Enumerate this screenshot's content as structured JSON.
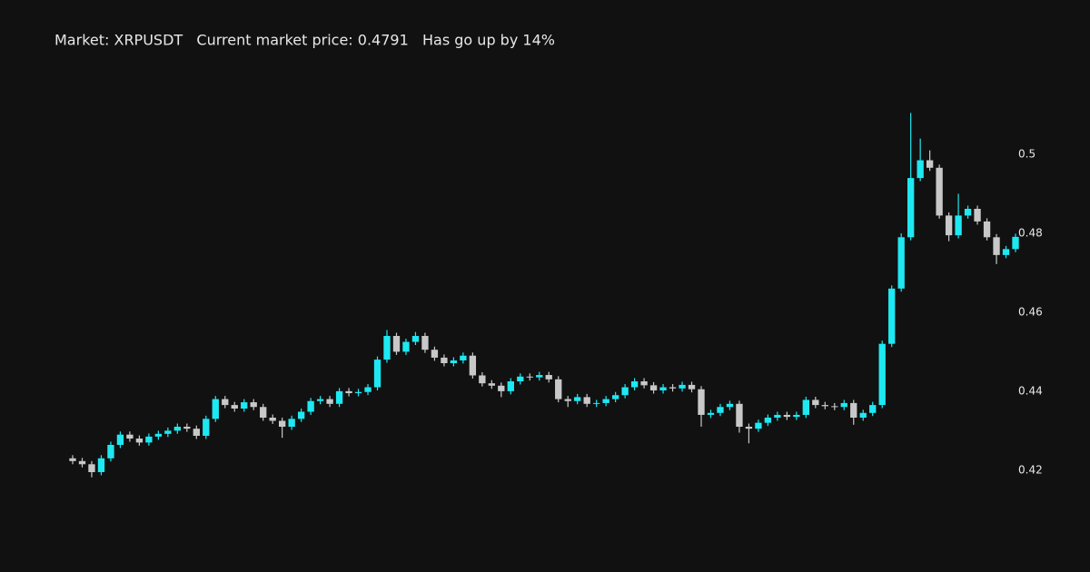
{
  "chart_data": {
    "type": "candlestick",
    "title": "Market: XRPUSDT   Current market price: 0.4791   Has go up by 14%",
    "open": [
      0.423,
      0.4223,
      0.4215,
      0.4195,
      0.423,
      0.4264,
      0.429,
      0.428,
      0.427,
      0.4285,
      0.4292,
      0.43,
      0.431,
      0.4305,
      0.4287,
      0.433,
      0.438,
      0.4365,
      0.4356,
      0.4372,
      0.436,
      0.4333,
      0.4325,
      0.431,
      0.433,
      0.4348,
      0.4375,
      0.438,
      0.4368,
      0.44,
      0.4395,
      0.4398,
      0.441,
      0.448,
      0.454,
      0.45,
      0.4525,
      0.454,
      0.4505,
      0.4485,
      0.4471,
      0.4478,
      0.449,
      0.444,
      0.442,
      0.4414,
      0.44,
      0.4425,
      0.4437,
      0.4435,
      0.4441,
      0.443,
      0.438,
      0.4375,
      0.4385,
      0.4368,
      0.437,
      0.438,
      0.439,
      0.441,
      0.4425,
      0.4415,
      0.4402,
      0.441,
      0.4407,
      0.4416,
      0.4405,
      0.434,
      0.4345,
      0.436,
      0.4368,
      0.431,
      0.4305,
      0.432,
      0.4333,
      0.434,
      0.4335,
      0.434,
      0.4378,
      0.4365,
      0.4362,
      0.436,
      0.437,
      0.4333,
      0.4345,
      0.4365,
      0.452,
      0.466,
      0.479,
      0.494,
      0.4985,
      0.4966,
      0.4845,
      0.4795,
      0.4845,
      0.4862,
      0.483,
      0.479,
      0.4745,
      0.476
    ],
    "high": [
      0.4238,
      0.4231,
      0.4223,
      0.4238,
      0.4272,
      0.4298,
      0.4298,
      0.4288,
      0.4293,
      0.43,
      0.4308,
      0.4318,
      0.4318,
      0.4313,
      0.4338,
      0.4388,
      0.4388,
      0.4373,
      0.438,
      0.438,
      0.4368,
      0.4341,
      0.4333,
      0.4338,
      0.4356,
      0.4383,
      0.4388,
      0.4388,
      0.4408,
      0.4408,
      0.4406,
      0.4418,
      0.4488,
      0.4555,
      0.4548,
      0.4533,
      0.455,
      0.4548,
      0.4513,
      0.4493,
      0.4486,
      0.4498,
      0.4498,
      0.4448,
      0.4428,
      0.4422,
      0.4433,
      0.4445,
      0.4445,
      0.4449,
      0.4449,
      0.4438,
      0.4388,
      0.4393,
      0.4393,
      0.4378,
      0.4388,
      0.4398,
      0.4418,
      0.4433,
      0.4433,
      0.4423,
      0.4418,
      0.4418,
      0.4424,
      0.4424,
      0.4413,
      0.4353,
      0.4368,
      0.4376,
      0.4376,
      0.4318,
      0.4328,
      0.4341,
      0.4348,
      0.4348,
      0.4348,
      0.4386,
      0.4386,
      0.4373,
      0.437,
      0.4378,
      0.4378,
      0.4353,
      0.4373,
      0.4528,
      0.4668,
      0.48,
      0.5105,
      0.504,
      0.501,
      0.4974,
      0.4853,
      0.49,
      0.487,
      0.487,
      0.4838,
      0.4798,
      0.4768,
      0.4799
    ],
    "low": [
      0.4215,
      0.4207,
      0.4182,
      0.4187,
      0.4222,
      0.4256,
      0.4272,
      0.4262,
      0.4262,
      0.4277,
      0.4284,
      0.4292,
      0.4297,
      0.4279,
      0.4279,
      0.4322,
      0.4357,
      0.4348,
      0.4348,
      0.4352,
      0.4325,
      0.4317,
      0.4282,
      0.4302,
      0.4322,
      0.434,
      0.4367,
      0.436,
      0.436,
      0.4387,
      0.4387,
      0.439,
      0.4402,
      0.4472,
      0.4492,
      0.4492,
      0.4517,
      0.4497,
      0.4477,
      0.4463,
      0.4463,
      0.447,
      0.4432,
      0.4412,
      0.4406,
      0.4385,
      0.4392,
      0.4417,
      0.4427,
      0.4427,
      0.4422,
      0.4372,
      0.436,
      0.4367,
      0.436,
      0.436,
      0.4362,
      0.4372,
      0.4382,
      0.4402,
      0.4407,
      0.4394,
      0.4394,
      0.4399,
      0.4399,
      0.4397,
      0.431,
      0.4332,
      0.4337,
      0.4352,
      0.4295,
      0.4268,
      0.4297,
      0.4312,
      0.4325,
      0.4327,
      0.4327,
      0.4332,
      0.4357,
      0.4354,
      0.4352,
      0.4352,
      0.4315,
      0.4325,
      0.4337,
      0.4357,
      0.4512,
      0.4652,
      0.4782,
      0.4932,
      0.4958,
      0.4837,
      0.478,
      0.4787,
      0.4837,
      0.4822,
      0.4782,
      0.4722,
      0.4737,
      0.4752
    ],
    "close": [
      0.4223,
      0.4215,
      0.4195,
      0.423,
      0.4264,
      0.429,
      0.428,
      0.427,
      0.4285,
      0.4292,
      0.43,
      0.431,
      0.4305,
      0.4287,
      0.433,
      0.438,
      0.4365,
      0.4356,
      0.4372,
      0.436,
      0.4333,
      0.4325,
      0.431,
      0.433,
      0.4348,
      0.4375,
      0.438,
      0.4368,
      0.44,
      0.4395,
      0.4398,
      0.441,
      0.448,
      0.454,
      0.45,
      0.4525,
      0.454,
      0.4505,
      0.4485,
      0.4471,
      0.4478,
      0.449,
      0.444,
      0.442,
      0.4414,
      0.44,
      0.4425,
      0.4437,
      0.4435,
      0.4441,
      0.443,
      0.438,
      0.4375,
      0.4385,
      0.4368,
      0.437,
      0.438,
      0.439,
      0.441,
      0.4425,
      0.4415,
      0.4402,
      0.441,
      0.4407,
      0.4416,
      0.4405,
      0.434,
      0.4345,
      0.436,
      0.4368,
      0.431,
      0.4305,
      0.432,
      0.4333,
      0.434,
      0.4335,
      0.434,
      0.4378,
      0.4365,
      0.4362,
      0.436,
      0.437,
      0.4333,
      0.4345,
      0.4365,
      0.452,
      0.466,
      0.479,
      0.494,
      0.4985,
      0.4966,
      0.4845,
      0.4795,
      0.4845,
      0.4862,
      0.483,
      0.479,
      0.4745,
      0.476,
      0.4791
    ],
    "increasing_color": "#1ee8f2",
    "decreasing_color": "#c8c8c8",
    "ylim": [
      0.4011,
      0.5207
    ],
    "yticks": [
      0.42,
      0.44,
      0.46,
      0.48,
      0.5
    ],
    "y_axis_side": "right",
    "grid": false
  }
}
